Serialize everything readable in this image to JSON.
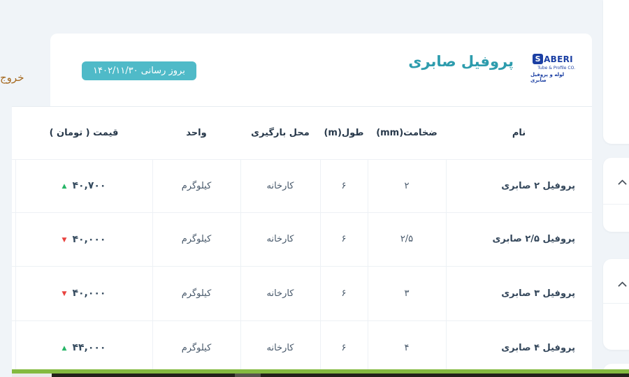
{
  "page": {
    "exit_link": "خروج"
  },
  "header": {
    "title": "پروفیل صابری",
    "update_badge": "بروز رسانی ۱۴۰۲/۱۱/۳۰",
    "logo": {
      "mark": "S",
      "brand_rest": "ABERI",
      "subtitle_en": "Tube & Profile CO.",
      "subtitle_fa": "لوله و پروفیل صابری"
    }
  },
  "table": {
    "columns": [
      "نام",
      "ضخامت(mm)",
      "طول(m)",
      "محل بارگیری",
      "واحد",
      "قیمت ( تومان )"
    ],
    "rows": [
      {
        "name": "پروفیل ۲ صابری",
        "thickness": "۲",
        "length": "۶",
        "loading": "کارخانه",
        "unit": "کیلوگرم",
        "price": "۴۰,۷۰۰",
        "trend": "up"
      },
      {
        "name": "پروفیل ۲/۵ صابری",
        "thickness": "۲/۵",
        "length": "۶",
        "loading": "کارخانه",
        "unit": "کیلوگرم",
        "price": "۴۰,۰۰۰",
        "trend": "down"
      },
      {
        "name": "پروفیل ۳ صابری",
        "thickness": "۳",
        "length": "۶",
        "loading": "کارخانه",
        "unit": "کیلوگرم",
        "price": "۴۰,۰۰۰",
        "trend": "down"
      },
      {
        "name": "پروفیل ۴ صابری",
        "thickness": "۴",
        "length": "۶",
        "loading": "کارخانه",
        "unit": "کیلوگرم",
        "price": "۴۴,۰۰۰",
        "trend": "up"
      }
    ]
  },
  "icons": {
    "trend_up": "▲",
    "trend_down": "▼",
    "chevron_up": "collapse"
  },
  "colors": {
    "accent_teal": "#4fbac8",
    "title_teal": "#2d9cad",
    "brand_blue": "#1b3fa3",
    "trend_up_green": "#27b567",
    "trend_down_red": "#e8433f",
    "exit_link": "#a5691f",
    "footer_green": "#84ba40"
  }
}
